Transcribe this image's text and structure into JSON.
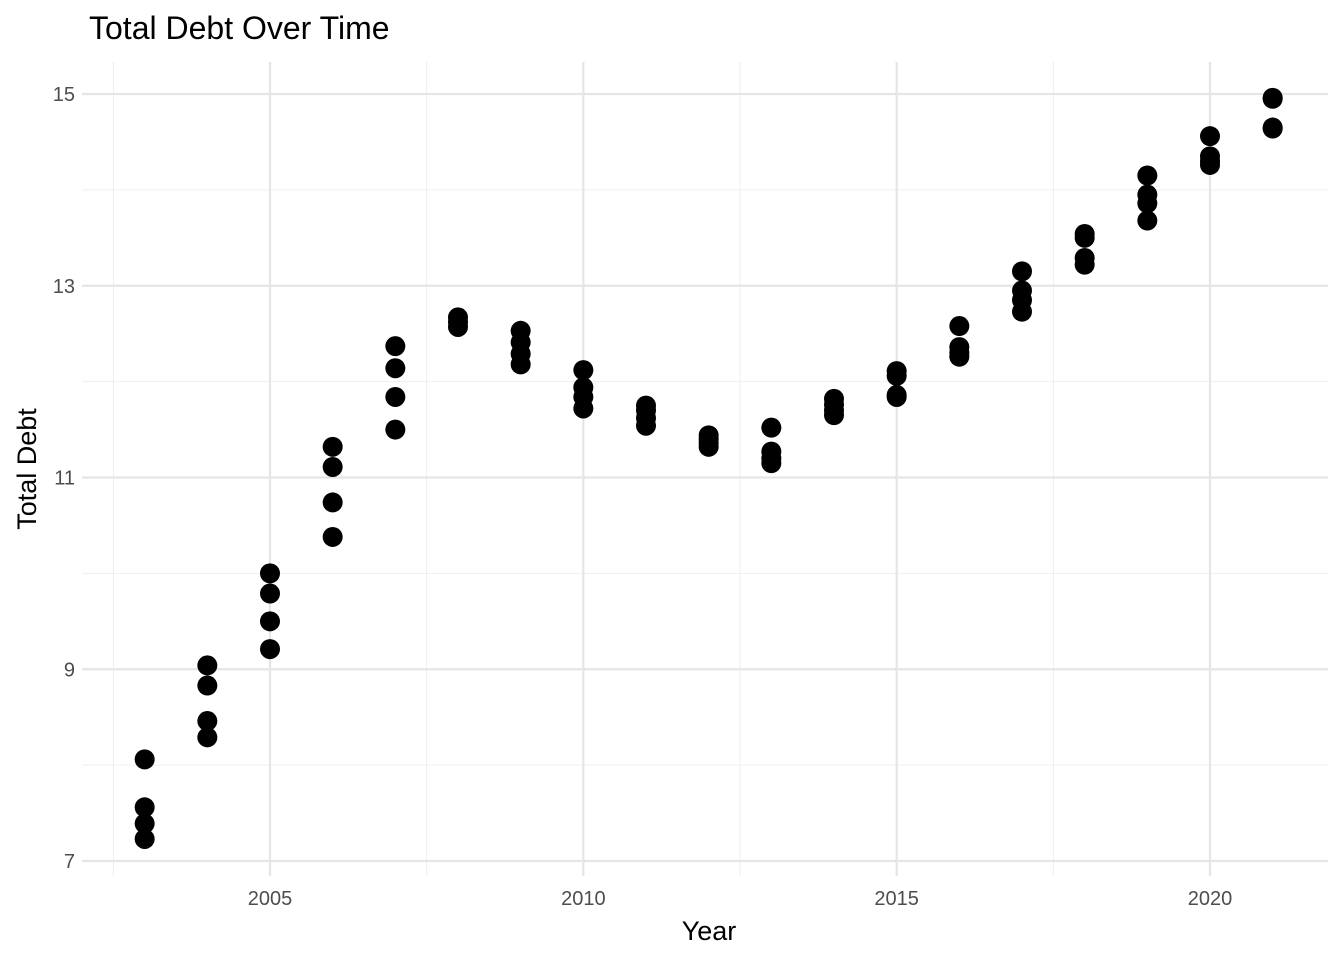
{
  "chart_data": {
    "type": "scatter",
    "title": "Total Debt Over Time",
    "xlabel": "Year",
    "ylabel": "Total Debt",
    "xlim": [
      2002.4,
      2021.9
    ],
    "ylim": [
      6.95,
      15.35
    ],
    "x_ticks": [
      2005,
      2010,
      2015,
      2020
    ],
    "y_ticks": [
      7,
      9,
      11,
      13,
      15
    ],
    "grid": true,
    "legend": "none",
    "point_color": "#000000",
    "points": [
      {
        "x": 2003,
        "y": 8.06
      },
      {
        "x": 2003,
        "y": 7.56
      },
      {
        "x": 2003,
        "y": 7.39
      },
      {
        "x": 2003,
        "y": 7.23
      },
      {
        "x": 2004,
        "y": 9.04
      },
      {
        "x": 2004,
        "y": 8.83
      },
      {
        "x": 2004,
        "y": 8.46
      },
      {
        "x": 2004,
        "y": 8.29
      },
      {
        "x": 2005,
        "y": 10.0
      },
      {
        "x": 2005,
        "y": 9.79
      },
      {
        "x": 2005,
        "y": 9.5
      },
      {
        "x": 2005,
        "y": 9.21
      },
      {
        "x": 2006,
        "y": 11.32
      },
      {
        "x": 2006,
        "y": 11.11
      },
      {
        "x": 2006,
        "y": 10.74
      },
      {
        "x": 2006,
        "y": 10.38
      },
      {
        "x": 2007,
        "y": 12.37
      },
      {
        "x": 2007,
        "y": 12.14
      },
      {
        "x": 2007,
        "y": 11.84
      },
      {
        "x": 2007,
        "y": 11.5
      },
      {
        "x": 2008,
        "y": 12.67
      },
      {
        "x": 2008,
        "y": 12.62
      },
      {
        "x": 2008,
        "y": 12.57
      },
      {
        "x": 2009,
        "y": 12.53
      },
      {
        "x": 2009,
        "y": 12.41
      },
      {
        "x": 2009,
        "y": 12.29
      },
      {
        "x": 2009,
        "y": 12.18
      },
      {
        "x": 2010,
        "y": 12.12
      },
      {
        "x": 2010,
        "y": 11.94
      },
      {
        "x": 2010,
        "y": 11.84
      },
      {
        "x": 2010,
        "y": 11.72
      },
      {
        "x": 2011,
        "y": 11.75
      },
      {
        "x": 2011,
        "y": 11.7
      },
      {
        "x": 2011,
        "y": 11.62
      },
      {
        "x": 2011,
        "y": 11.54
      },
      {
        "x": 2012,
        "y": 11.44
      },
      {
        "x": 2012,
        "y": 11.4
      },
      {
        "x": 2012,
        "y": 11.36
      },
      {
        "x": 2012,
        "y": 11.32
      },
      {
        "x": 2013,
        "y": 11.52
      },
      {
        "x": 2013,
        "y": 11.27
      },
      {
        "x": 2013,
        "y": 11.2
      },
      {
        "x": 2013,
        "y": 11.15
      },
      {
        "x": 2014,
        "y": 11.82
      },
      {
        "x": 2014,
        "y": 11.76
      },
      {
        "x": 2014,
        "y": 11.7
      },
      {
        "x": 2014,
        "y": 11.65
      },
      {
        "x": 2015,
        "y": 12.11
      },
      {
        "x": 2015,
        "y": 12.06
      },
      {
        "x": 2015,
        "y": 11.86
      },
      {
        "x": 2015,
        "y": 11.84
      },
      {
        "x": 2016,
        "y": 12.58
      },
      {
        "x": 2016,
        "y": 12.36
      },
      {
        "x": 2016,
        "y": 12.3
      },
      {
        "x": 2016,
        "y": 12.26
      },
      {
        "x": 2017,
        "y": 13.15
      },
      {
        "x": 2017,
        "y": 12.95
      },
      {
        "x": 2017,
        "y": 12.85
      },
      {
        "x": 2017,
        "y": 12.73
      },
      {
        "x": 2018,
        "y": 13.54
      },
      {
        "x": 2018,
        "y": 13.5
      },
      {
        "x": 2018,
        "y": 13.29
      },
      {
        "x": 2018,
        "y": 13.22
      },
      {
        "x": 2019,
        "y": 14.15
      },
      {
        "x": 2019,
        "y": 13.95
      },
      {
        "x": 2019,
        "y": 13.86
      },
      {
        "x": 2019,
        "y": 13.68
      },
      {
        "x": 2020,
        "y": 14.56
      },
      {
        "x": 2020,
        "y": 14.35
      },
      {
        "x": 2020,
        "y": 14.3
      },
      {
        "x": 2020,
        "y": 14.26
      },
      {
        "x": 2021,
        "y": 14.96
      },
      {
        "x": 2021,
        "y": 14.95
      },
      {
        "x": 2021,
        "y": 14.65
      },
      {
        "x": 2021,
        "y": 14.64
      }
    ]
  }
}
